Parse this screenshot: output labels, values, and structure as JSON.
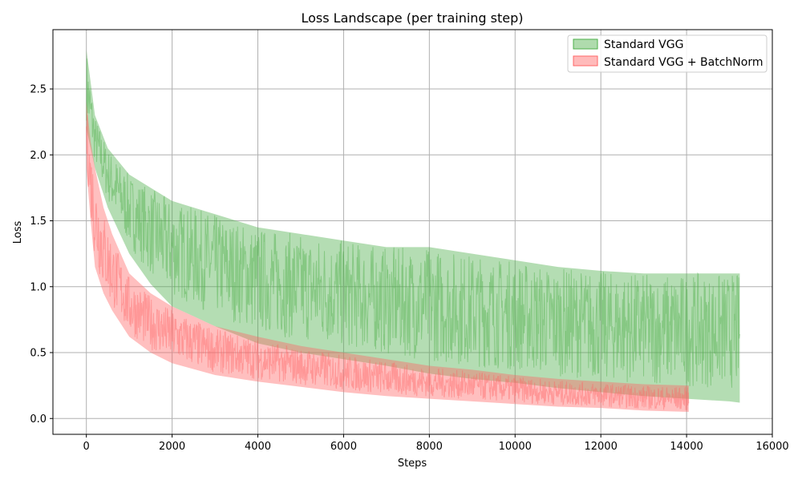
{
  "chart_data": {
    "type": "area",
    "title": "Loss Landscape (per training step)",
    "xlabel": "Steps",
    "ylabel": "Loss",
    "xlim": [
      -780,
      16000
    ],
    "ylim": [
      -0.12,
      2.95
    ],
    "xticks": [
      0,
      2000,
      4000,
      6000,
      8000,
      10000,
      12000,
      14000,
      16000
    ],
    "yticks": [
      0.0,
      0.5,
      1.0,
      1.5,
      2.0,
      2.5
    ],
    "xtick_labels": [
      "0",
      "2000",
      "4000",
      "6000",
      "8000",
      "10000",
      "12000",
      "14000",
      "16000"
    ],
    "ytick_labels": [
      "0.0",
      "0.5",
      "1.0",
      "1.5",
      "2.0",
      "2.5"
    ],
    "grid": true,
    "legend_position": "top-right",
    "series": [
      {
        "name": "Standard VGG",
        "color": "#4daf4a",
        "x": [
          0,
          200,
          500,
          1000,
          1500,
          2000,
          3000,
          4000,
          5000,
          6000,
          7000,
          8000,
          9000,
          10000,
          11000,
          12000,
          13000,
          14000,
          15000,
          15240
        ],
        "lower": [
          2.2,
          1.9,
          1.6,
          1.25,
          1.02,
          0.85,
          0.7,
          0.57,
          0.5,
          0.45,
          0.4,
          0.34,
          0.3,
          0.27,
          0.23,
          0.2,
          0.17,
          0.15,
          0.13,
          0.12
        ],
        "upper": [
          2.8,
          2.3,
          2.05,
          1.85,
          1.75,
          1.65,
          1.55,
          1.45,
          1.4,
          1.35,
          1.3,
          1.3,
          1.25,
          1.2,
          1.15,
          1.12,
          1.1,
          1.1,
          1.1,
          1.1
        ]
      },
      {
        "name": "Standard VGG + BatchNorm",
        "color": "#ff6666",
        "x": [
          0,
          100,
          200,
          400,
          600,
          800,
          1000,
          1500,
          2000,
          3000,
          4000,
          5000,
          6000,
          7000,
          8000,
          9000,
          10000,
          11000,
          12000,
          13000,
          14050
        ],
        "lower": [
          1.9,
          1.5,
          1.15,
          0.95,
          0.82,
          0.72,
          0.62,
          0.5,
          0.42,
          0.33,
          0.28,
          0.24,
          0.2,
          0.17,
          0.15,
          0.13,
          0.11,
          0.09,
          0.08,
          0.06,
          0.05
        ],
        "upper": [
          2.4,
          2.1,
          1.9,
          1.6,
          1.4,
          1.25,
          1.1,
          0.95,
          0.85,
          0.7,
          0.62,
          0.55,
          0.5,
          0.45,
          0.4,
          0.37,
          0.33,
          0.3,
          0.28,
          0.26,
          0.25
        ]
      }
    ]
  }
}
